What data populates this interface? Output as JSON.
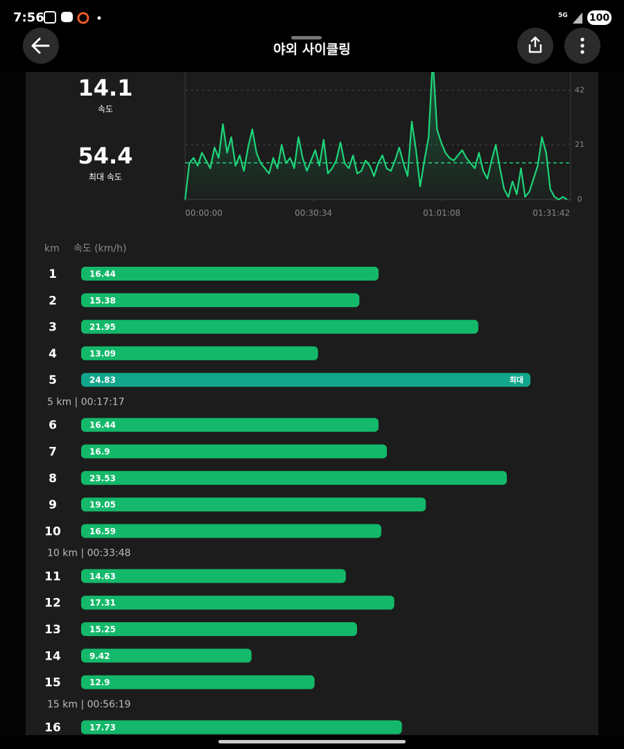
{
  "status_bar": {
    "time": "7:56",
    "network": "5G",
    "battery": "100"
  },
  "header": {
    "title": "야외 사이클링"
  },
  "summary": {
    "avg_speed": {
      "value": 14.1,
      "label": "속도"
    },
    "max_speed": {
      "value": 54.4,
      "label": "최대 속도"
    }
  },
  "chart_data": {
    "type": "line",
    "x": [
      0,
      60,
      120,
      180,
      240,
      300,
      360,
      420,
      480,
      540,
      600,
      660,
      720,
      780,
      840,
      900,
      960,
      1020,
      1080,
      1140,
      1200,
      1260,
      1320,
      1380,
      1440,
      1500,
      1560,
      1620,
      1680,
      1740,
      1800,
      1860,
      1920,
      1980,
      2040,
      2100,
      2160,
      2220,
      2280,
      2340,
      2400,
      2460,
      2520,
      2580,
      2640,
      2700,
      2760,
      2820,
      2880,
      2940,
      3000,
      3060,
      3120,
      3180,
      3240,
      3300,
      3360,
      3420,
      3480,
      3540,
      3600,
      3660,
      3720,
      3780,
      3840,
      3900,
      3960,
      4020,
      4080,
      4140,
      4200,
      4260,
      4320,
      4380,
      4440,
      4500,
      4560,
      4620,
      4680,
      4740,
      4800,
      4860,
      4920,
      4980,
      5040,
      5100,
      5160,
      5220,
      5280,
      5340,
      5400,
      5460
    ],
    "series": [
      {
        "color": "#1ed67a",
        "values": [
          0,
          14,
          16,
          13,
          18,
          15,
          12,
          20,
          16,
          29,
          18,
          24,
          13,
          17,
          11,
          20,
          27,
          18,
          14,
          12,
          10,
          16,
          12,
          21,
          14,
          16,
          12,
          24,
          16,
          11,
          15,
          19,
          13,
          23,
          10,
          12,
          15,
          22,
          14,
          12,
          17,
          10,
          11,
          15,
          13,
          9,
          14,
          17,
          12,
          11,
          15,
          20,
          14,
          9,
          30,
          19,
          5,
          15,
          24,
          54.4,
          27,
          22,
          18,
          16,
          15,
          17,
          19,
          16,
          14,
          12,
          18,
          11,
          8,
          15,
          21,
          12,
          4,
          1,
          7,
          2,
          12,
          1,
          3,
          8,
          13,
          24,
          18,
          4,
          1,
          0,
          1,
          0
        ]
      }
    ],
    "xlim": [
      0,
      5510
    ],
    "xticks": [
      {
        "value": 0,
        "label": "00:00:00"
      },
      {
        "value": 1834,
        "label": "00:30:34"
      },
      {
        "value": 3668,
        "label": "01:01:08"
      },
      {
        "value": 5502,
        "label": "01:31:42"
      }
    ],
    "ylim": [
      0,
      49
    ],
    "yticks": [
      0,
      21,
      42
    ],
    "grid": true
  },
  "splits": {
    "header_km": "km",
    "header_speed": "속도 (km/h)",
    "max_label": "최대",
    "color": "#14b86a",
    "max_color": "#12a68c",
    "groups": [
      {
        "rows": [
          {
            "km": 1,
            "speed": 16.44
          },
          {
            "km": 2,
            "speed": 15.38
          },
          {
            "km": 3,
            "speed": 21.95
          },
          {
            "km": 4,
            "speed": 13.09
          },
          {
            "km": 5,
            "speed": 24.83
          }
        ],
        "summary": "5 km | 00:17:17"
      },
      {
        "rows": [
          {
            "km": 6,
            "speed": 16.44
          },
          {
            "km": 7,
            "speed": 16.9
          },
          {
            "km": 8,
            "speed": 23.53
          },
          {
            "km": 9,
            "speed": 19.05
          },
          {
            "km": 10,
            "speed": 16.59
          }
        ],
        "summary": "10 km | 00:33:48"
      },
      {
        "rows": [
          {
            "km": 11,
            "speed": 14.63
          },
          {
            "km": 12,
            "speed": 17.31
          },
          {
            "km": 13,
            "speed": 15.25
          },
          {
            "km": 14,
            "speed": 9.42
          },
          {
            "km": 15,
            "speed": 12.9
          }
        ],
        "summary": "15 km | 00:56:19"
      },
      {
        "rows": [
          {
            "km": 16,
            "speed": 17.73
          }
        ]
      }
    ]
  }
}
